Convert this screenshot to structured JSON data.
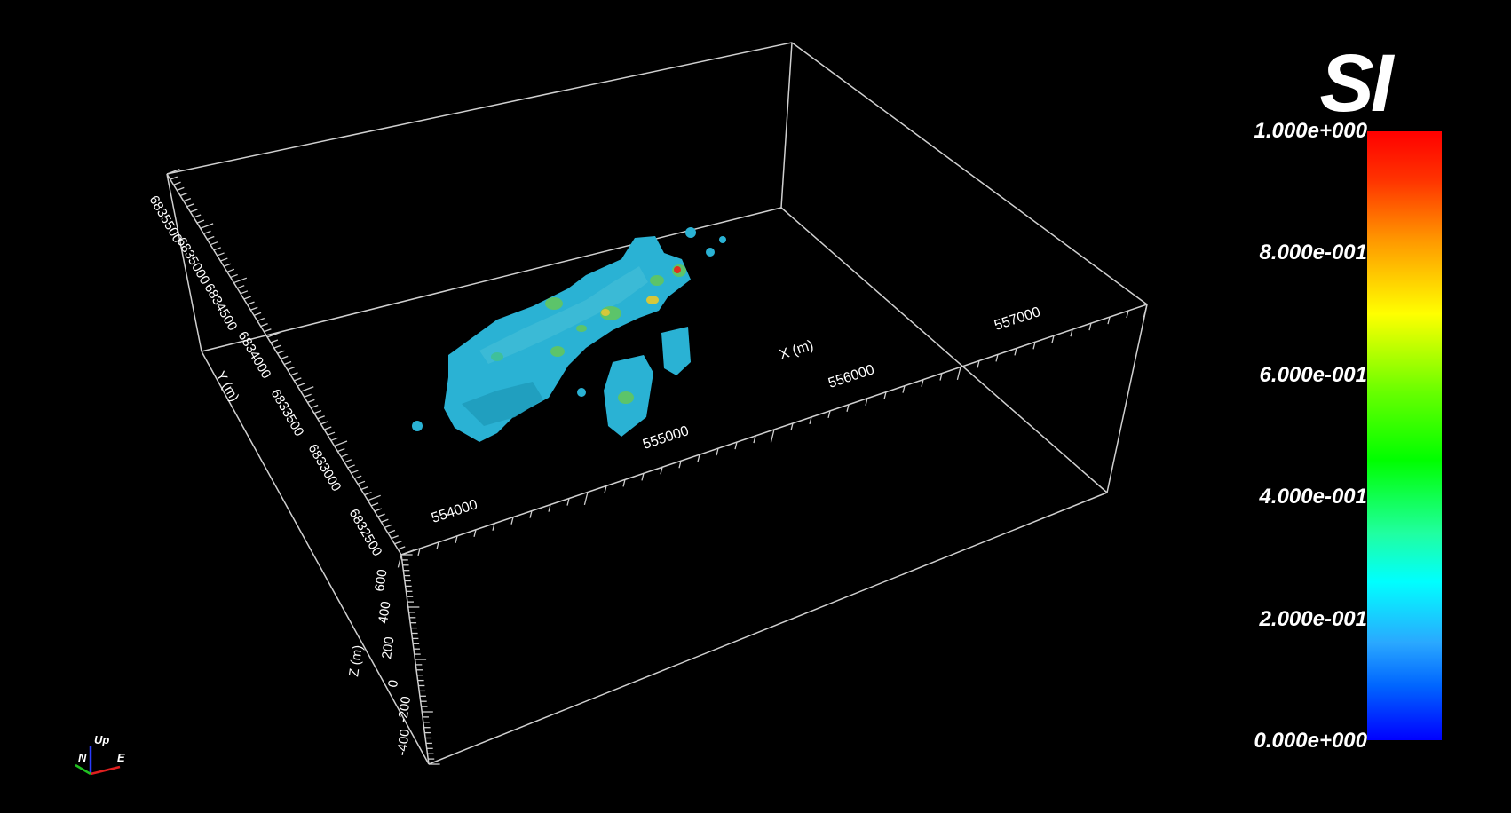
{
  "scene": {
    "background": "#000000",
    "box_color": "#d0d0d0",
    "x_axis": {
      "label": "X (m)",
      "ticks": [
        "554000",
        "555000",
        "556000",
        "557000"
      ]
    },
    "y_axis": {
      "label": "Y (m)",
      "ticks": [
        "6832500",
        "6833000",
        "6833500",
        "6834000",
        "6834500",
        "6835000",
        "6835500"
      ]
    },
    "z_axis": {
      "label": "Z (m)",
      "ticks": [
        "-400",
        "-200",
        "0",
        "200",
        "400",
        "600"
      ]
    },
    "body_colors": {
      "dominant": "#2ab2d4",
      "highlight_green": "#5cc46a",
      "highlight_yellow": "#d6c83a",
      "peak_red": "#e03020"
    }
  },
  "legend": {
    "title": "SI",
    "labels": [
      "1.000e+000",
      "8.000e-001",
      "6.000e-001",
      "4.000e-001",
      "2.000e-001",
      "0.000e+000"
    ]
  },
  "orientation": {
    "up": "Up",
    "north": "N",
    "east": "E"
  }
}
